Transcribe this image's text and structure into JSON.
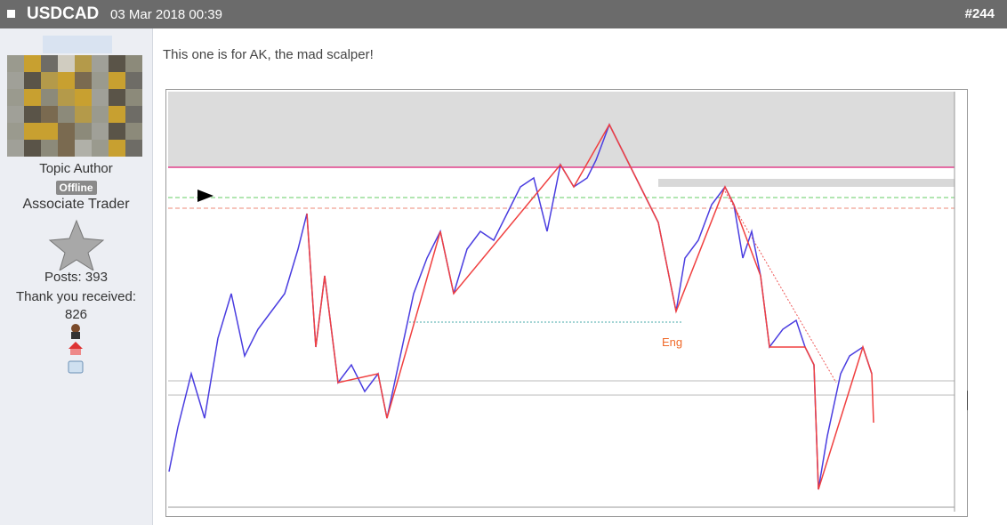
{
  "header": {
    "title": "USDCAD",
    "date": "03 Mar 2018 00:39",
    "post_number": "#244"
  },
  "author": {
    "role": "Topic Author",
    "status": "Offline",
    "rank": "Associate Trader",
    "posts": "Posts: 393",
    "thanks": "Thank you received: 826"
  },
  "message": {
    "text": "This one is for AK, the mad scalper!",
    "annotation": "Eng"
  }
}
